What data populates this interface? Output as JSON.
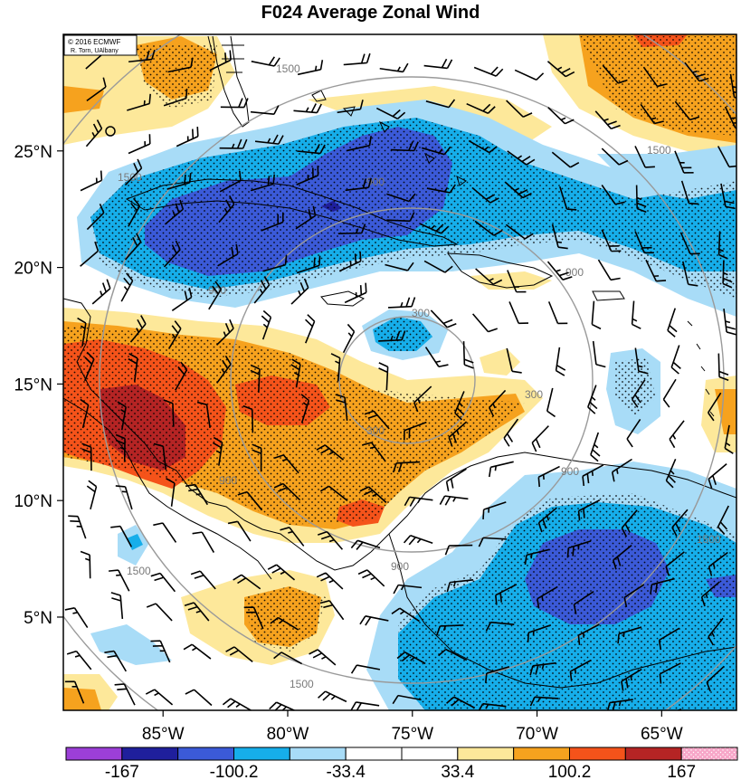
{
  "title": "F024 Average Zonal Wind",
  "credit": [
    "© 2016 ECMWF",
    "R. Torn, UAlbany"
  ],
  "map": {
    "lon_range": [
      -89,
      -62
    ],
    "lat_range": [
      1,
      30
    ],
    "lat_labels": [
      {
        "lat": 25,
        "text": "25°N"
      },
      {
        "lat": 20,
        "text": "20°N"
      },
      {
        "lat": 15,
        "text": "15°N"
      },
      {
        "lat": 10,
        "text": "10°N"
      },
      {
        "lat": 5,
        "text": "5°N"
      }
    ],
    "lon_labels": [
      {
        "lon": -85,
        "text": "85°W"
      },
      {
        "lon": -80,
        "text": "80°W"
      },
      {
        "lon": -75,
        "text": "75°W"
      },
      {
        "lon": -70,
        "text": "70°W"
      },
      {
        "lon": -65,
        "text": "65°W"
      }
    ],
    "contour_labels": [
      "1500",
      "900",
      "300",
      "900",
      "300",
      "900",
      "1500",
      "1500",
      "900",
      "1500",
      "900",
      "1500",
      "300",
      "900",
      "1500"
    ]
  },
  "colorbar": {
    "ticks": [
      "-167",
      "-100.2",
      "-33.4",
      "33.4",
      "100.2",
      "167"
    ],
    "colors": [
      "#9c3fd8",
      "#1f1f9c",
      "#3b5ad8",
      "#16aeea",
      "#a8dcf7",
      "#ffffff",
      "#ffffff",
      "#fde89a",
      "#f6a21e",
      "#f5531a",
      "#b52424",
      "#f7a6c8"
    ]
  }
}
